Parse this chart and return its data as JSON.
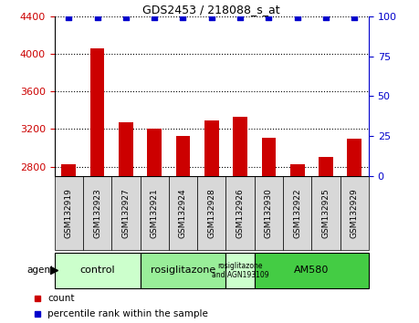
{
  "title": "GDS2453 / 218088_s_at",
  "samples": [
    "GSM132919",
    "GSM132923",
    "GSM132927",
    "GSM132921",
    "GSM132924",
    "GSM132928",
    "GSM132926",
    "GSM132930",
    "GSM132922",
    "GSM132925",
    "GSM132929"
  ],
  "counts": [
    2830,
    4060,
    3270,
    3200,
    3130,
    3290,
    3330,
    3110,
    2830,
    2900,
    3100
  ],
  "percentiles": [
    99,
    99,
    99,
    99,
    99,
    99,
    99,
    99,
    99,
    99,
    99
  ],
  "ylim_left": [
    2700,
    4400
  ],
  "ylim_right": [
    0,
    100
  ],
  "yticks_left": [
    2800,
    3200,
    3600,
    4000,
    4400
  ],
  "yticks_right": [
    0,
    25,
    50,
    75,
    100
  ],
  "bar_color": "#cc0000",
  "dot_color": "#0000cc",
  "agent_groups": [
    {
      "label": "control",
      "span": [
        0,
        3
      ],
      "color": "#ccffcc"
    },
    {
      "label": "rosiglitazone",
      "span": [
        3,
        6
      ],
      "color": "#99ee99"
    },
    {
      "label": "rosiglitazone\nand AGN193109",
      "span": [
        6,
        7
      ],
      "color": "#ccffcc"
    },
    {
      "label": "AM580",
      "span": [
        7,
        11
      ],
      "color": "#44cc44"
    }
  ],
  "legend_count_color": "#cc0000",
  "legend_pct_color": "#0000cc",
  "bar_width": 0.5,
  "ylabel_left_color": "#cc0000",
  "ylabel_right_color": "#0000cc",
  "grid_linestyle": "dotted",
  "grid_color": "black",
  "background_color": "white",
  "tick_area_bg": "#d8d8d8"
}
